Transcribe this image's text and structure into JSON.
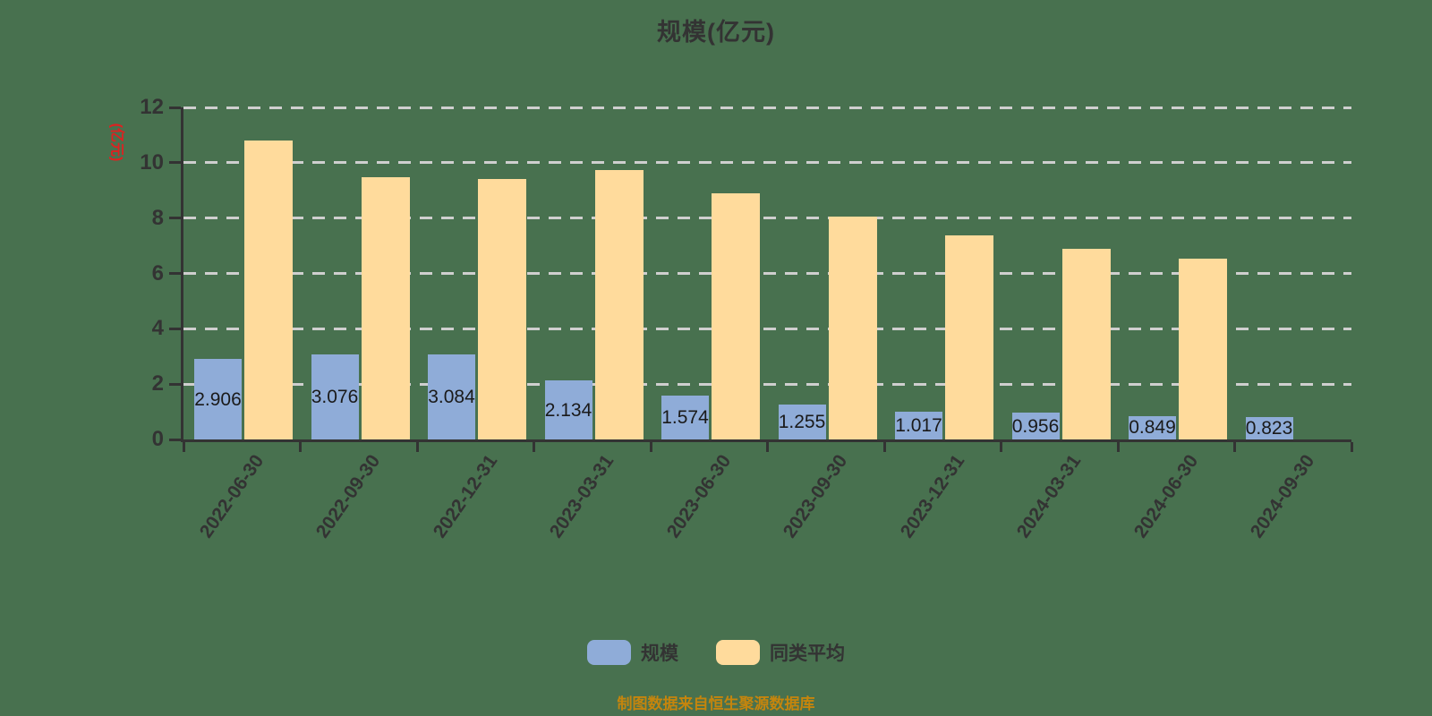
{
  "title": "规模(亿元)",
  "y_axis_name": "(亿元)",
  "y_axis_name_color": "#E02020",
  "footer": "制图数据来自恒生聚源数据库",
  "footer_color": "#C5850D",
  "background_color": "#48714F",
  "legend": [
    {
      "label": "规模",
      "color": "#8FACD8"
    },
    {
      "label": "同类平均",
      "color": "#FFDB9C"
    }
  ],
  "chart_data": {
    "type": "bar",
    "title": "规模(亿元)",
    "ylabel": "(亿元)",
    "ylim": [
      0,
      12
    ],
    "yticks": [
      0,
      2,
      4,
      6,
      8,
      10,
      12
    ],
    "grid": "dashed-horizontal",
    "legend_position": "bottom",
    "categories": [
      "2022-06-30",
      "2022-09-30",
      "2022-12-31",
      "2023-03-31",
      "2023-06-30",
      "2023-09-30",
      "2023-12-31",
      "2024-03-31",
      "2024-06-30",
      "2024-09-30"
    ],
    "series": [
      {
        "name": "规模",
        "color": "#8FACD8",
        "values": [
          2.906,
          3.076,
          3.084,
          2.134,
          1.574,
          1.255,
          1.017,
          0.956,
          0.849,
          0.823
        ],
        "value_labels_visible": true
      },
      {
        "name": "同类平均",
        "color": "#FFDB9C",
        "values": [
          10.8,
          9.47,
          9.42,
          9.74,
          8.9,
          8.06,
          7.39,
          6.9,
          6.55,
          null
        ],
        "value_labels_visible": false
      }
    ]
  }
}
